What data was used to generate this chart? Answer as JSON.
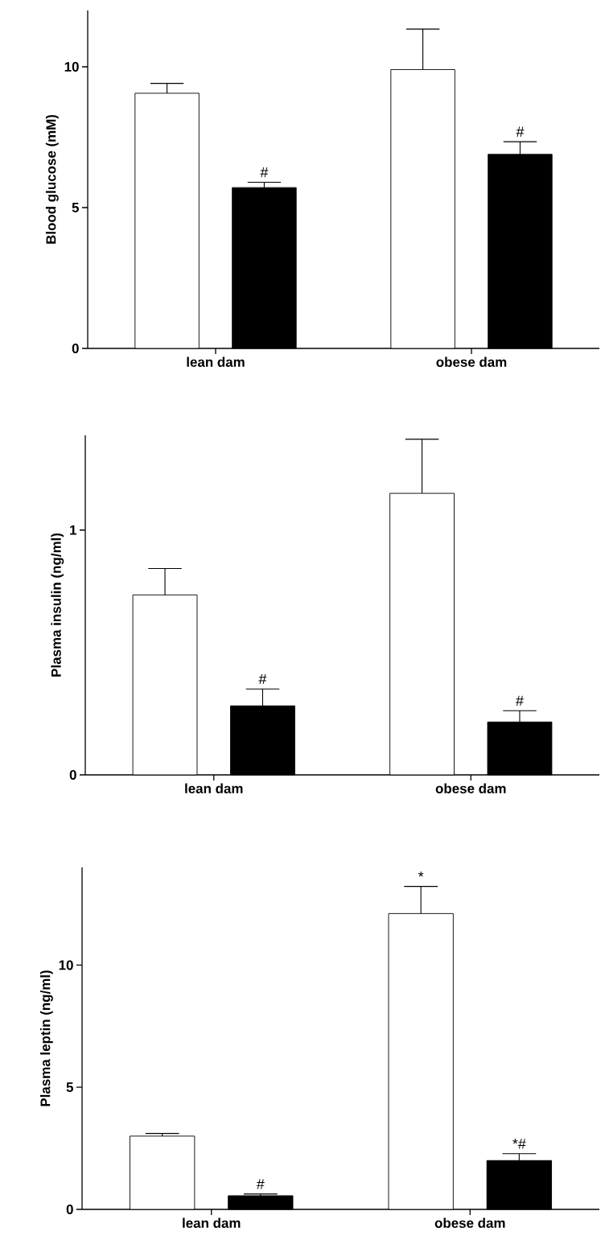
{
  "chart_data": [
    {
      "type": "bar",
      "ylabel": "Blood glucose (mM)",
      "categories": [
        "lean dam",
        "obese dam"
      ],
      "ylim": [
        0,
        12
      ],
      "yticks": [
        0,
        5,
        10
      ],
      "series": [
        {
          "color": "#ffffff",
          "values": [
            9.06,
            9.9
          ],
          "errors": [
            [
              9.06,
              9.41
            ],
            [
              9.9,
              11.34
            ]
          ]
        },
        {
          "color": "#000000",
          "values": [
            5.71,
            6.89
          ],
          "errors": [
            [
              5.71,
              5.9
            ],
            [
              6.89,
              7.34
            ]
          ]
        }
      ],
      "annotations": [
        "#",
        "#"
      ]
    },
    {
      "type": "bar",
      "ylabel": "Plasma insulin (ng/ml)",
      "categories": [
        "lean dam",
        "obese dam"
      ],
      "ylim": [
        0,
        1.387
      ],
      "yticks": [
        0,
        1
      ],
      "series": [
        {
          "color": "#ffffff",
          "values": [
            0.735,
            1.15
          ],
          "errors": [
            [
              0.735,
              0.843
            ],
            [
              1.15,
              1.371
            ]
          ]
        },
        {
          "color": "#000000",
          "values": [
            0.282,
            0.216
          ],
          "errors": [
            [
              0.282,
              0.351
            ],
            [
              0.216,
              0.262
            ]
          ]
        }
      ],
      "annotations": [
        "#",
        "#"
      ]
    },
    {
      "type": "bar",
      "ylabel": "Plasma leptin (ng/ml)",
      "categories": [
        "lean dam",
        "obese dam"
      ],
      "ylim": [
        0,
        14
      ],
      "yticks": [
        0,
        5,
        10
      ],
      "series": [
        {
          "color": "#ffffff",
          "values": [
            3.0,
            12.11
          ],
          "errors": [
            [
              3.0,
              3.11
            ],
            [
              12.11,
              13.22
            ]
          ]
        },
        {
          "color": "#000000",
          "values": [
            0.56,
            2.0
          ],
          "errors": [
            [
              0.56,
              0.63
            ],
            [
              2.0,
              2.28
            ]
          ]
        }
      ],
      "annotations": [
        "*",
        "#",
        "*#"
      ]
    }
  ]
}
